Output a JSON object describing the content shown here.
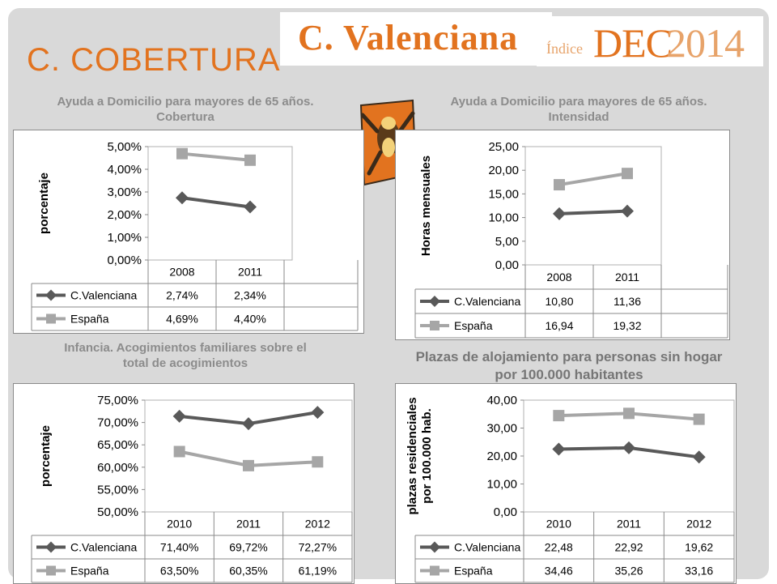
{
  "header": {
    "region_title": "C. Valenciana",
    "heading": "C. COBERTURA",
    "logo_prefix": "Índice",
    "logo_main": "DEC",
    "logo_year": "2014"
  },
  "colors": {
    "accent": "#e2731f",
    "series_cv": "#595959",
    "series_es": "#a6a6a6"
  },
  "icons": [
    "mascot-icon"
  ],
  "chart_data": [
    {
      "type": "line",
      "title_lines": [
        "Ayuda a Domicilio para mayores de 65 años.",
        "Cobertura"
      ],
      "ylabel_lines": [
        "porcentaje"
      ],
      "categories": [
        "2008",
        "2011"
      ],
      "ylim": [
        0,
        5
      ],
      "yticks": [
        "0,00%",
        "1,00%",
        "2,00%",
        "3,00%",
        "4,00%",
        "5,00%"
      ],
      "series": [
        {
          "name": "C.Valenciana",
          "values": [
            2.74,
            2.34
          ],
          "labels": [
            "2,74%",
            "2,34%"
          ],
          "marker": "diamond"
        },
        {
          "name": "España",
          "values": [
            4.69,
            4.4
          ],
          "labels": [
            "4,69%",
            "4,40%"
          ],
          "marker": "square"
        }
      ]
    },
    {
      "type": "line",
      "title_lines": [
        "Ayuda a Domicilio para mayores de 65 años.",
        "Intensidad"
      ],
      "ylabel_lines": [
        "Horas mensuales"
      ],
      "categories": [
        "2008",
        "2011"
      ],
      "ylim": [
        0,
        25
      ],
      "yticks": [
        "0,00",
        "5,00",
        "10,00",
        "15,00",
        "20,00",
        "25,00"
      ],
      "series": [
        {
          "name": "C.Valenciana",
          "values": [
            10.8,
            11.36
          ],
          "labels": [
            "10,80",
            "11,36"
          ],
          "marker": "diamond"
        },
        {
          "name": "España",
          "values": [
            16.94,
            19.32
          ],
          "labels": [
            "16,94",
            "19,32"
          ],
          "marker": "square"
        }
      ]
    },
    {
      "type": "line",
      "title_lines": [
        "Infancia. Acogimientos familiares sobre el",
        "total de acogimientos"
      ],
      "ylabel_lines": [
        "porcentaje"
      ],
      "categories": [
        "2010",
        "2011",
        "2012"
      ],
      "ylim": [
        50,
        75
      ],
      "yticks": [
        "50,00%",
        "55,00%",
        "60,00%",
        "65,00%",
        "70,00%",
        "75,00%"
      ],
      "series": [
        {
          "name": "C.Valenciana",
          "values": [
            71.4,
            69.72,
            72.27
          ],
          "labels": [
            "71,40%",
            "69,72%",
            "72,27%"
          ],
          "marker": "diamond"
        },
        {
          "name": "España",
          "values": [
            63.5,
            60.35,
            61.19
          ],
          "labels": [
            "63,50%",
            "60,35%",
            "61,19%"
          ],
          "marker": "square"
        }
      ]
    },
    {
      "type": "line",
      "title_lines": [
        "Plazas de alojamiento para personas sin hogar",
        "por 100.000 habitantes"
      ],
      "ylabel_lines": [
        "plazas residenciales",
        "por 100.000 hab."
      ],
      "categories": [
        "2010",
        "2011",
        "2012"
      ],
      "ylim": [
        0,
        40
      ],
      "yticks": [
        "0,00",
        "10,00",
        "20,00",
        "30,00",
        "40,00"
      ],
      "series": [
        {
          "name": "C.Valenciana",
          "values": [
            22.48,
            22.92,
            19.62
          ],
          "labels": [
            "22,48",
            "22,92",
            "19,62"
          ],
          "marker": "diamond"
        },
        {
          "name": "España",
          "values": [
            34.46,
            35.26,
            33.16
          ],
          "labels": [
            "34,46",
            "35,26",
            "33,16"
          ],
          "marker": "square"
        }
      ]
    }
  ]
}
